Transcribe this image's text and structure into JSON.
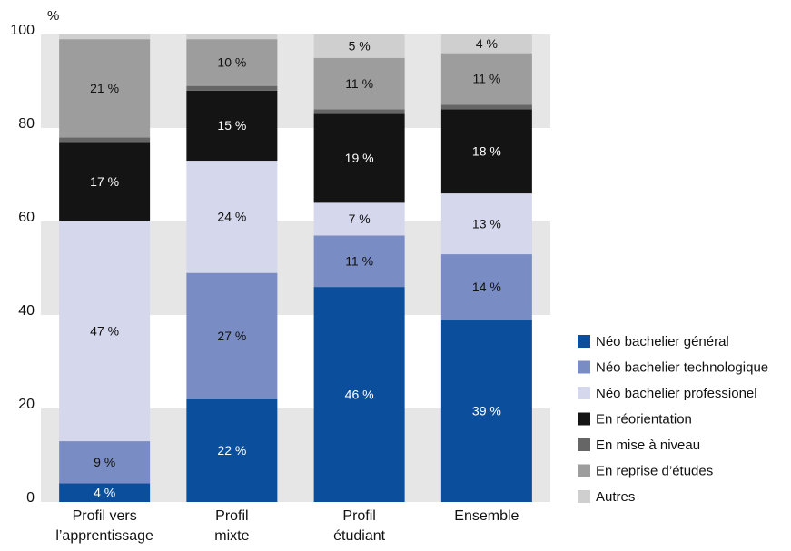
{
  "chart_data": {
    "type": "stacked_bar",
    "y_label": "%",
    "categories": [
      "Profil vers\nl’apprentissage",
      "Profil\nmixte",
      "Profil\nétudiant",
      "Ensemble"
    ],
    "series": [
      {
        "name": "Néo bachelier général",
        "color": "#0b4f9c",
        "values": [
          4,
          22,
          46,
          39
        ],
        "value_labels": [
          "4 %",
          "22 %",
          "46 %",
          "39 %"
        ]
      },
      {
        "name": "Néo bachelier technologique",
        "color": "#7a8cc4",
        "values": [
          9,
          27,
          11,
          14
        ],
        "value_labels": [
          "9 %",
          "27 %",
          "11 %",
          "14 %"
        ]
      },
      {
        "name": "Néo bachelier professionel",
        "color": "#d5d7ec",
        "values": [
          47,
          24,
          7,
          13
        ],
        "value_labels": [
          "47 %",
          "24 %",
          "7 %",
          "13 %"
        ]
      },
      {
        "name": "En réorientation",
        "color": "#141414",
        "values": [
          17,
          15,
          19,
          18
        ],
        "value_labels": [
          "17 %",
          "15 %",
          "19 %",
          "18 %"
        ]
      },
      {
        "name": "En mise à niveau",
        "color": "#666666",
        "values": [
          1,
          1,
          1,
          1
        ],
        "value_labels": [
          null,
          null,
          null,
          null
        ]
      },
      {
        "name": "En reprise d’études",
        "color": "#9d9d9d",
        "values": [
          21,
          10,
          11,
          11
        ],
        "value_labels": [
          "21 %",
          "10 %",
          "11 %",
          "11 %"
        ]
      },
      {
        "name": "Autres",
        "color": "#cfcfcf",
        "values": [
          1,
          1,
          5,
          4
        ],
        "value_labels": [
          null,
          null,
          "5 %",
          "4 %"
        ]
      }
    ],
    "ylim": [
      0,
      100
    ],
    "yticks": [
      0,
      20,
      40,
      60,
      80,
      100
    ],
    "grid": "bands",
    "legend": "bottom-right"
  }
}
